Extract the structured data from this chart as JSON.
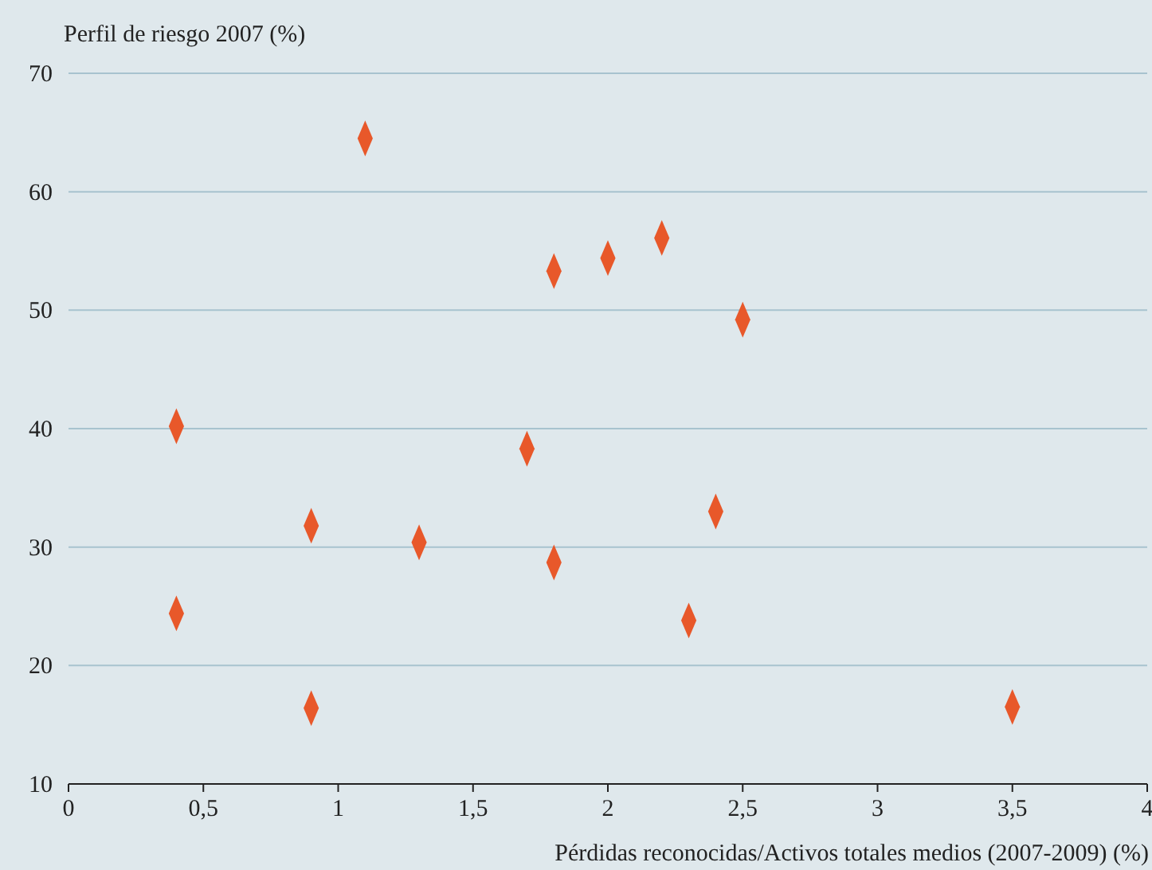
{
  "chart_data": {
    "type": "scatter",
    "ylabel": "Perfil de riesgo 2007 (%)",
    "xlabel": "Pérdidas reconocidas/Activos totales medios (2007-2009) (%)",
    "x": [
      0.4,
      0.4,
      0.9,
      0.9,
      1.1,
      1.3,
      1.7,
      1.8,
      1.8,
      2.0,
      2.2,
      2.3,
      2.4,
      2.5,
      3.5
    ],
    "series": [
      {
        "color": "#e8582a",
        "values": [
          40.2,
          24.4,
          31.8,
          16.4,
          64.5,
          30.4,
          38.3,
          53.3,
          28.7,
          54.4,
          56.1,
          23.8,
          33.0,
          49.2,
          16.5
        ]
      }
    ],
    "xlim": [
      0,
      4
    ],
    "xticks": [
      0,
      {
        "value": 0.5,
        "label": "0,5"
      },
      1,
      {
        "value": 1.5,
        "label": "1,5"
      },
      2,
      {
        "value": 2.5,
        "label": "2,5"
      },
      3,
      {
        "value": 3.5,
        "label": "3,5"
      },
      4
    ],
    "ylim": [
      10,
      70
    ],
    "yticks": [
      10,
      20,
      30,
      40,
      50,
      60,
      70
    ],
    "grid": "y",
    "marker": "diamond"
  }
}
